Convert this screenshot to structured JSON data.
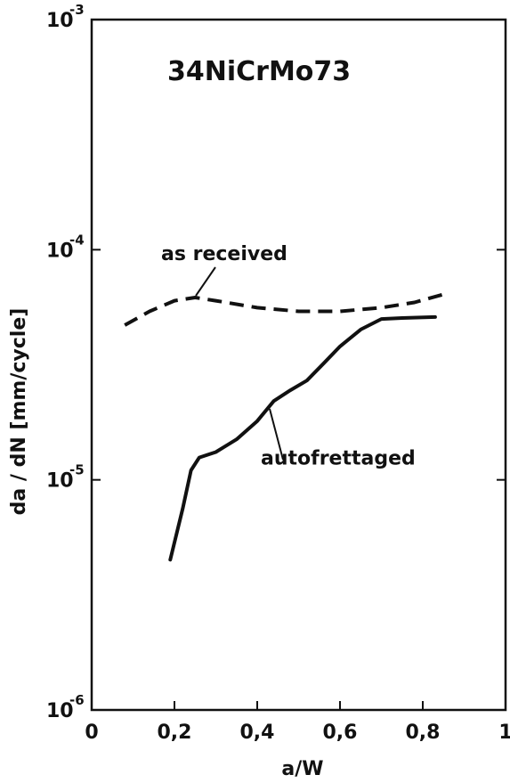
{
  "chart_data": {
    "type": "line",
    "title": "34NiCrMo73",
    "xlabel": "a/W",
    "ylabel": "da / dN  [mm/cycle]",
    "x_ticks": [
      "0",
      "0,2",
      "0,4",
      "0,6",
      "0,8",
      "1"
    ],
    "x_tick_values": [
      0,
      0.2,
      0.4,
      0.6,
      0.8,
      1
    ],
    "y_ticks": [
      {
        "base": "10",
        "exp": "-6",
        "value": 1e-06
      },
      {
        "base": "10",
        "exp": "-5",
        "value": 1e-05
      },
      {
        "base": "10",
        "exp": "-4",
        "value": 0.0001
      },
      {
        "base": "10",
        "exp": "-3",
        "value": 0.001
      }
    ],
    "xlim": [
      0,
      1
    ],
    "ylim": [
      1e-06,
      0.001
    ],
    "yscale": "log",
    "grid": false,
    "series": [
      {
        "name": "as received",
        "style": "dashed",
        "x": [
          0.08,
          0.14,
          0.2,
          0.25,
          0.3,
          0.4,
          0.5,
          0.6,
          0.7,
          0.78,
          0.85
        ],
        "y": [
          4.7e-05,
          5.4e-05,
          6e-05,
          6.2e-05,
          6e-05,
          5.6e-05,
          5.4e-05,
          5.4e-05,
          5.6e-05,
          5.9e-05,
          6.4e-05
        ]
      },
      {
        "name": "autofrettaged",
        "style": "solid",
        "x": [
          0.19,
          0.22,
          0.24,
          0.26,
          0.3,
          0.35,
          0.4,
          0.44,
          0.48,
          0.52,
          0.56,
          0.6,
          0.65,
          0.7,
          0.75,
          0.83
        ],
        "y": [
          4.5e-06,
          7.5e-06,
          1.1e-05,
          1.25e-05,
          1.32e-05,
          1.5e-05,
          1.8e-05,
          2.2e-05,
          2.45e-05,
          2.7e-05,
          3.2e-05,
          3.8e-05,
          4.5e-05,
          5e-05,
          5.05e-05,
          5.1e-05
        ]
      }
    ],
    "annotations": [
      {
        "text": "as received",
        "x": 0.2,
        "y": 9e-05
      },
      {
        "text": "autofrettaged",
        "x": 0.41,
        "y": 1.25e-05
      }
    ]
  }
}
